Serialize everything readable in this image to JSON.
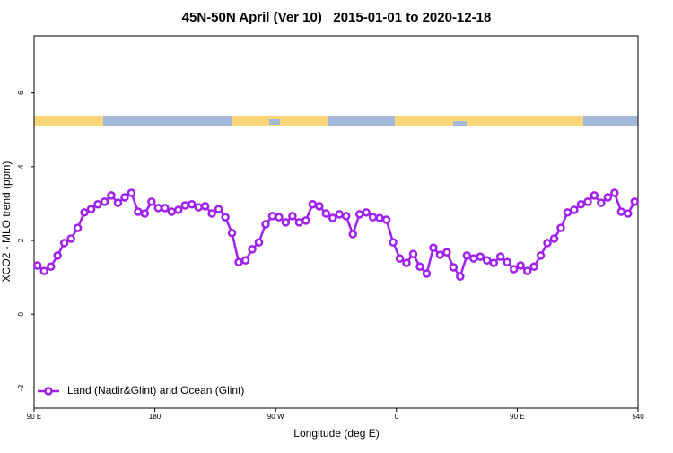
{
  "chart_data": {
    "type": "line",
    "title": "45N-50N April (Ver 10)   2015-01-01 to 2020-12-18",
    "x_label": "Longitude (deg E)",
    "y_label": "XCO2 - MLO trend (ppm)",
    "x": [
      92.5,
      97.5,
      102.5,
      107.5,
      112.5,
      117.5,
      122.5,
      127.5,
      132.5,
      137.5,
      142.5,
      147.5,
      152.5,
      157.5,
      162.5,
      167.5,
      172.5,
      177.5,
      182.5,
      187.5,
      192.5,
      197.5,
      202.5,
      207.5,
      212.5,
      217.5,
      222.5,
      227.5,
      232.5,
      237.5,
      242.5,
      247.5,
      252.5,
      257.5,
      262.5,
      267.5,
      272.5,
      277.5,
      282.5,
      287.5,
      292.5,
      297.5,
      302.5,
      307.5,
      312.5,
      317.5,
      322.5,
      327.5,
      332.5,
      337.5,
      342.5,
      347.5,
      352.5,
      357.5,
      362.5,
      367.5,
      372.5,
      377.5,
      382.5,
      387.5,
      392.5,
      397.5,
      402.5,
      407.5,
      412.5,
      417.5,
      422.5,
      427.5,
      432.5,
      437.5,
      442.5,
      447.5,
      452.5,
      457.5,
      462.5,
      467.5,
      472.5,
      477.5,
      482.5,
      487.5,
      492.5,
      497.5,
      502.5,
      507.5,
      512.5,
      517.5,
      522.5,
      527.5,
      532.5,
      537.5
    ],
    "series": [
      {
        "name": "Land (Nadir&Glint) and Ocean (Glint)",
        "color": "#a020f0",
        "values": [
          1.32,
          1.17,
          1.29,
          1.59,
          1.93,
          2.05,
          2.34,
          2.76,
          2.85,
          2.98,
          3.05,
          3.22,
          3.02,
          3.17,
          3.29,
          2.78,
          2.73,
          3.05,
          2.88,
          2.88,
          2.78,
          2.83,
          2.95,
          2.98,
          2.9,
          2.93,
          2.73,
          2.85,
          2.63,
          2.2,
          1.41,
          1.46,
          1.76,
          1.95,
          2.44,
          2.66,
          2.63,
          2.49,
          2.66,
          2.49,
          2.54,
          2.98,
          2.93,
          2.73,
          2.61,
          2.71,
          2.66,
          2.17,
          2.71,
          2.76,
          2.63,
          2.61,
          2.56,
          1.95,
          1.51,
          1.39,
          1.63,
          1.29,
          1.1,
          1.8,
          1.61,
          1.68,
          1.27,
          1.02,
          1.59,
          1.51,
          1.56,
          1.46,
          1.39,
          1.56,
          1.41,
          1.22,
          1.32,
          1.17,
          1.29,
          1.59,
          1.93,
          2.05,
          2.34,
          2.76,
          2.83,
          2.98,
          3.05,
          3.22,
          3.02,
          3.17,
          3.29,
          2.78,
          2.73,
          3.05
        ]
      }
    ],
    "xlim": [
      90,
      540
    ],
    "xticks": [
      {
        "value": 90,
        "label": "90 E"
      },
      180,
      {
        "value": 270,
        "label": "90 W"
      },
      {
        "value": 360,
        "label": "0"
      },
      {
        "value": 450,
        "label": "90 E"
      },
      540
    ],
    "ylim": [
      -2.55,
      7.55
    ],
    "yticks": [
      -2,
      0,
      2,
      4,
      6
    ],
    "legend": "bottom-left"
  }
}
